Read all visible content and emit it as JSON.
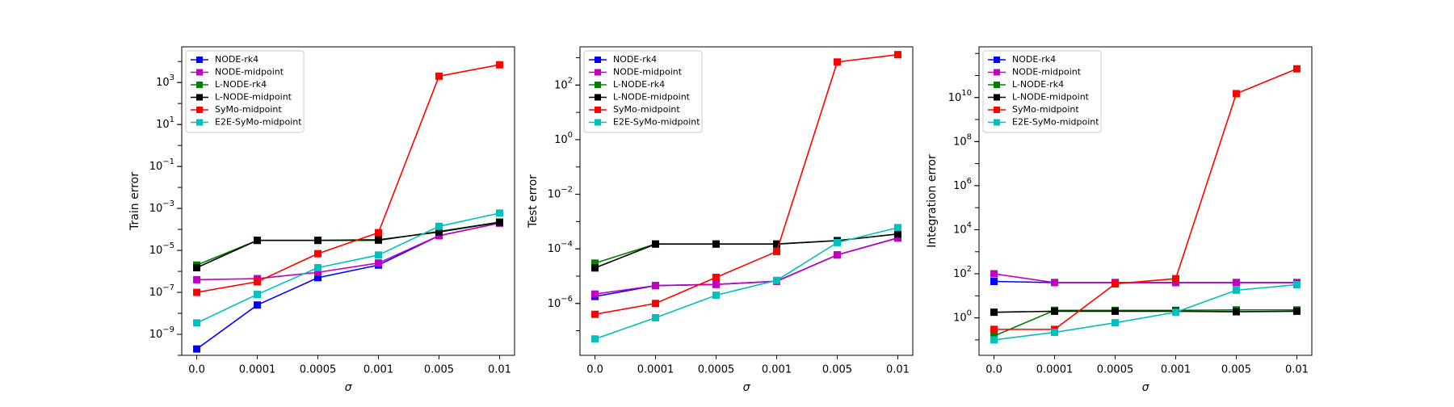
{
  "chart_data": [
    {
      "type": "line",
      "ylabel": "Train error",
      "xlabel": "σ",
      "log_y": true,
      "ylim_exp": [
        -10,
        4.7
      ],
      "yticks": [
        {
          "exp": -9,
          "label": "10−9"
        },
        {
          "exp": -7,
          "label": "10−7"
        },
        {
          "exp": -5,
          "label": "10−5"
        },
        {
          "exp": -3,
          "label": "10−3"
        },
        {
          "exp": -1,
          "label": "10−1"
        },
        {
          "exp": 1,
          "label": "101"
        },
        {
          "exp": 3,
          "label": "103"
        }
      ],
      "categories": [
        "0.0",
        "0.0001",
        "0.0005",
        "0.001",
        "0.005",
        "0.01"
      ],
      "legend_position": "upper-left",
      "series": [
        {
          "name": "NODE-rk4",
          "color": "#0000ff",
          "values": [
            2e-10,
            2.5e-08,
            5e-07,
            2e-06,
            5e-05,
            0.0002
          ]
        },
        {
          "name": "NODE-midpoint",
          "color": "#bf00bf",
          "values": [
            4e-07,
            4.5e-07,
            9e-07,
            2.5e-06,
            5e-05,
            0.0002
          ]
        },
        {
          "name": "L-NODE-rk4",
          "color": "#008000",
          "values": [
            2e-06,
            3e-05,
            3e-05,
            3e-05,
            8e-05,
            0.00022
          ]
        },
        {
          "name": "L-NODE-midpoint",
          "color": "#000000",
          "values": [
            1.5e-06,
            3e-05,
            3e-05,
            3.2e-05,
            7.5e-05,
            0.00022
          ]
        },
        {
          "name": "SyMo-midpoint",
          "color": "#ff0000",
          "values": [
            1e-07,
            3.2e-07,
            7e-06,
            7e-05,
            2000,
            7000
          ]
        },
        {
          "name": "E2E-SyMo-midpoint",
          "color": "#00bfbf",
          "values": [
            3.5e-09,
            8e-08,
            1.5e-06,
            6e-06,
            0.00014,
            0.0006
          ]
        }
      ]
    },
    {
      "type": "line",
      "ylabel": "Test error",
      "xlabel": "σ",
      "log_y": true,
      "ylim_exp": [
        -7.9,
        3.4
      ],
      "yticks": [
        {
          "exp": -6,
          "label": "10−6"
        },
        {
          "exp": -4,
          "label": "10−4"
        },
        {
          "exp": -2,
          "label": "10−2"
        },
        {
          "exp": 0,
          "label": "100"
        },
        {
          "exp": 2,
          "label": "102"
        }
      ],
      "categories": [
        "0.0",
        "0.0001",
        "0.0005",
        "0.001",
        "0.005",
        "0.01"
      ],
      "legend_position": "upper-left",
      "series": [
        {
          "name": "NODE-rk4",
          "color": "#0000ff",
          "values": [
            1.8e-06,
            4.5e-06,
            5e-06,
            6.5e-06,
            6e-05,
            0.00025
          ]
        },
        {
          "name": "NODE-midpoint",
          "color": "#bf00bf",
          "values": [
            2.2e-06,
            4.5e-06,
            5e-06,
            6.5e-06,
            6e-05,
            0.00025
          ]
        },
        {
          "name": "L-NODE-rk4",
          "color": "#008000",
          "values": [
            3e-05,
            0.00015,
            0.00015,
            0.00015,
            0.0002,
            0.00035
          ]
        },
        {
          "name": "L-NODE-midpoint",
          "color": "#000000",
          "values": [
            2e-05,
            0.00015,
            0.00015,
            0.00015,
            0.0002,
            0.00035
          ]
        },
        {
          "name": "SyMo-midpoint",
          "color": "#ff0000",
          "values": [
            4e-07,
            1e-06,
            9e-06,
            8e-05,
            700,
            1300
          ]
        },
        {
          "name": "E2E-SyMo-midpoint",
          "color": "#00bfbf",
          "values": [
            5e-08,
            3e-07,
            2e-06,
            7e-06,
            0.00017,
            0.0006
          ]
        }
      ]
    },
    {
      "type": "line",
      "ylabel": "Integration error",
      "xlabel": "σ",
      "log_y": true,
      "ylim_exp": [
        -1.7,
        12.3
      ],
      "yticks": [
        {
          "exp": 0,
          "label": "100"
        },
        {
          "exp": 2,
          "label": "102"
        },
        {
          "exp": 4,
          "label": "104"
        },
        {
          "exp": 6,
          "label": "106"
        },
        {
          "exp": 8,
          "label": "108"
        },
        {
          "exp": 10,
          "label": "1010"
        }
      ],
      "categories": [
        "0.0",
        "0.0001",
        "0.0005",
        "0.001",
        "0.005",
        "0.01"
      ],
      "legend_position": "upper-left",
      "series": [
        {
          "name": "NODE-rk4",
          "color": "#0000ff",
          "values": [
            45,
            40,
            40,
            40,
            40,
            40
          ]
        },
        {
          "name": "NODE-midpoint",
          "color": "#bf00bf",
          "values": [
            100,
            40,
            40,
            40,
            40,
            40
          ]
        },
        {
          "name": "L-NODE-rk4",
          "color": "#008000",
          "values": [
            0.15,
            2.2,
            2.2,
            2.2,
            2.3,
            2.3
          ]
        },
        {
          "name": "L-NODE-midpoint",
          "color": "#000000",
          "values": [
            1.8,
            2,
            2,
            2,
            1.9,
            2
          ]
        },
        {
          "name": "SyMo-midpoint",
          "color": "#ff0000",
          "values": [
            0.3,
            0.3,
            35,
            60,
            15000000000.0,
            200000000000.0
          ]
        },
        {
          "name": "E2E-SyMo-midpoint",
          "color": "#00bfbf",
          "values": [
            0.1,
            0.22,
            0.6,
            1.8,
            18,
            32
          ]
        }
      ]
    }
  ]
}
